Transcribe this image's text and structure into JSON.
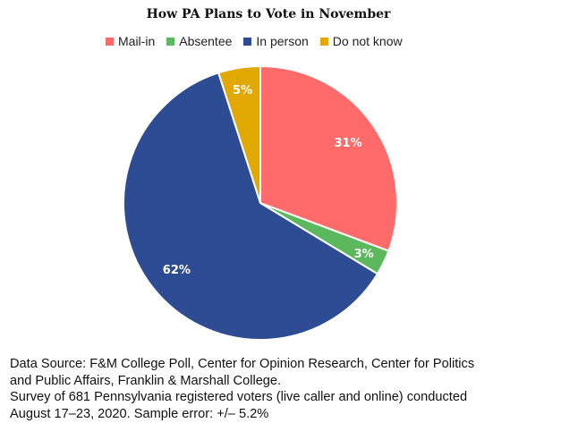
{
  "chart_data": {
    "type": "pie",
    "title": "How PA Plans to Vote in November",
    "legend_position": "top",
    "slices": [
      {
        "label": "Mail-in",
        "value": 31,
        "display": "31%",
        "color": "#ff6b6b"
      },
      {
        "label": "Absentee",
        "value": 3,
        "display": "3%",
        "color": "#5cb85c"
      },
      {
        "label": "In person",
        "value": 62,
        "display": "62%",
        "color": "#2e4c93"
      },
      {
        "label": "Do not know",
        "value": 5,
        "display": "5%",
        "color": "#e0a800"
      }
    ]
  },
  "source_lines": [
    "Data Source: F&M College Poll, Center for Opinion Research, Center for Politics",
    "and Public Affairs, Franklin & Marshall College.",
    "Survey of 681 Pennsylvania registered voters (live caller and online) conducted",
    "August 17–23, 2020. Sample error: +/– 5.2%"
  ]
}
